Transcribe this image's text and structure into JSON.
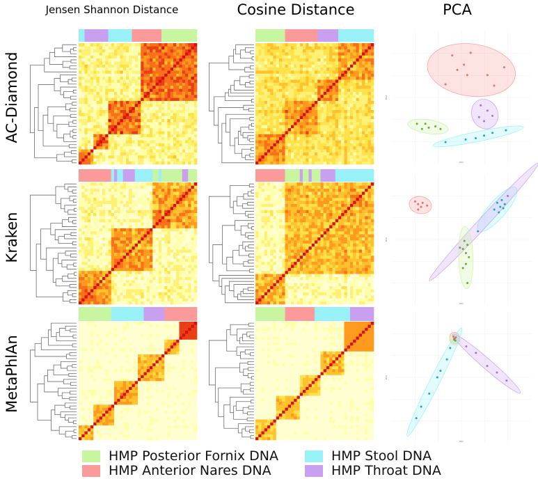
{
  "column_titles": [
    "Jensen Shannon Distance",
    "Cosine Distance",
    "PCA"
  ],
  "row_titles": [
    "AC-Diamond",
    "Kraken",
    "MetaPhlAn"
  ],
  "legend": [
    {
      "label": "HMP Posterior Fornix DNA",
      "color": "#c8f5a0"
    },
    {
      "label": "HMP Anterior Nares DNA",
      "color": "#fb9a9a"
    },
    {
      "label": "HMP Stool DNA",
      "color": "#98f1f7"
    },
    {
      "label": "HMP Throat DNA",
      "color": "#c9a0f0"
    }
  ],
  "chart_data": [
    {
      "type": "heatmap",
      "method": "AC-Diamond",
      "metric": "Jensen Shannon Distance",
      "samples": 40,
      "annotation": [
        {
          "group": "HMP Stool DNA",
          "count": 2
        },
        {
          "group": "HMP Throat DNA",
          "count": 8
        },
        {
          "group": "HMP Stool DNA",
          "count": 8
        },
        {
          "group": "HMP Anterior Nares DNA",
          "count": 10
        },
        {
          "group": "HMP Posterior Fornix DNA",
          "count": 12
        }
      ]
    },
    {
      "type": "heatmap",
      "method": "AC-Diamond",
      "metric": "Cosine Distance",
      "samples": 40,
      "annotation": [
        {
          "group": "HMP Posterior Fornix DNA",
          "count": 10
        },
        {
          "group": "HMP Anterior Nares DNA",
          "count": 11
        },
        {
          "group": "HMP Throat DNA",
          "count": 7
        },
        {
          "group": "HMP Stool DNA",
          "count": 12
        }
      ]
    },
    {
      "type": "scatter",
      "method": "AC-Diamond",
      "panel": "PCA",
      "xlabel": "PC1",
      "ylabel": "PC2",
      "series": [
        {
          "name": "HMP Anterior Nares DNA",
          "points": [
            [
              -0.5,
              3.1
            ],
            [
              0.6,
              3.3
            ],
            [
              0.2,
              2.4
            ],
            [
              -0.2,
              2.0
            ],
            [
              0.4,
              1.6
            ],
            [
              1.6,
              1.6
            ],
            [
              -0.9,
              0.9
            ],
            [
              2.0,
              0.8
            ],
            [
              2.6,
              2.2
            ]
          ]
        },
        {
          "name": "HMP Throat DNA",
          "points": [
            [
              1.2,
              -0.7
            ],
            [
              1.6,
              -1.1
            ],
            [
              1.9,
              -1.5
            ],
            [
              1.1,
              -1.6
            ],
            [
              1.4,
              -1.9
            ]
          ]
        },
        {
          "name": "HMP Posterior Fornix DNA",
          "points": [
            [
              -2.6,
              -2.1
            ],
            [
              -2.1,
              -2.1
            ],
            [
              -1.9,
              -2.4
            ],
            [
              -1.5,
              -2.3
            ],
            [
              -1.2,
              -2.5
            ],
            [
              -2.3,
              -2.5
            ]
          ]
        },
        {
          "name": "HMP Stool DNA",
          "points": [
            [
              -0.9,
              -3.5
            ],
            [
              0.3,
              -3.3
            ],
            [
              0.9,
              -3.2
            ],
            [
              1.4,
              -3.0
            ],
            [
              1.9,
              -2.8
            ],
            [
              2.7,
              -2.6
            ]
          ]
        }
      ]
    },
    {
      "type": "heatmap",
      "method": "Kraken",
      "metric": "Jensen Shannon Distance",
      "samples": 40,
      "annotation": [
        {
          "group": "HMP Anterior Nares DNA",
          "count": 11
        },
        {
          "group": "HMP Stool DNA",
          "count": 1
        },
        {
          "group": "HMP Throat DNA",
          "count": 1
        },
        {
          "group": "HMP Stool DNA",
          "count": 2
        },
        {
          "group": "HMP Throat DNA",
          "count": 4
        },
        {
          "group": "HMP Stool DNA",
          "count": 6
        },
        {
          "group": "HMP Posterior Fornix DNA",
          "count": 2
        },
        {
          "group": "HMP Stool DNA",
          "count": 1
        },
        {
          "group": "HMP Posterior Fornix DNA",
          "count": 7
        },
        {
          "group": "HMP Throat DNA",
          "count": 2
        },
        {
          "group": "HMP Posterior Fornix DNA",
          "count": 3
        }
      ]
    },
    {
      "type": "heatmap",
      "method": "Kraken",
      "metric": "Cosine Distance",
      "samples": 40,
      "annotation": [
        {
          "group": "HMP Anterior Nares DNA",
          "count": 10
        },
        {
          "group": "HMP Posterior Fornix DNA",
          "count": 5
        },
        {
          "group": "HMP Throat DNA",
          "count": 1
        },
        {
          "group": "HMP Posterior Fornix DNA",
          "count": 2
        },
        {
          "group": "HMP Throat DNA",
          "count": 1
        },
        {
          "group": "HMP Posterior Fornix DNA",
          "count": 3
        },
        {
          "group": "HMP Throat DNA",
          "count": 5
        },
        {
          "group": "HMP Stool DNA",
          "count": 13
        }
      ]
    },
    {
      "type": "scatter",
      "method": "Kraken",
      "panel": "PCA",
      "xlabel": "PC1",
      "ylabel": "PC2",
      "series": [
        {
          "name": "HMP Anterior Nares DNA",
          "points": [
            [
              -3.2,
              2.5
            ],
            [
              -3.0,
              2.3
            ],
            [
              -2.8,
              2.1
            ],
            [
              -3.0,
              1.9
            ],
            [
              -2.7,
              2.4
            ],
            [
              -2.4,
              2.2
            ]
          ]
        },
        {
          "name": "HMP Stool DNA",
          "points": [
            [
              2.3,
              2.4
            ],
            [
              2.6,
              2.6
            ],
            [
              2.5,
              2.1
            ],
            [
              2.8,
              2.3
            ],
            [
              2.1,
              1.9
            ],
            [
              2.7,
              2.0
            ],
            [
              2.4,
              1.7
            ],
            [
              1.0,
              0.3
            ]
          ]
        },
        {
          "name": "HMP Throat DNA",
          "points": [
            [
              3.0,
              2.9
            ],
            [
              -0.2,
              -0.9
            ]
          ]
        },
        {
          "name": "HMP Posterior Fornix DNA",
          "points": [
            [
              0.1,
              -0.4
            ],
            [
              0.3,
              -0.7
            ],
            [
              0.0,
              -1.0
            ],
            [
              0.2,
              -1.3
            ],
            [
              0.4,
              -1.6
            ],
            [
              0.2,
              -2.1
            ],
            [
              0.0,
              -2.4
            ],
            [
              0.3,
              -3.5
            ]
          ]
        }
      ]
    },
    {
      "type": "heatmap",
      "method": "MetaPhlAn",
      "metric": "Jensen Shannon Distance",
      "samples": 40,
      "annotation": [
        {
          "group": "HMP Posterior Fornix DNA",
          "count": 11
        },
        {
          "group": "HMP Stool DNA",
          "count": 11
        },
        {
          "group": "HMP Throat DNA",
          "count": 7
        },
        {
          "group": "HMP Anterior Nares DNA",
          "count": 11
        }
      ]
    },
    {
      "type": "heatmap",
      "method": "MetaPhlAn",
      "metric": "Cosine Distance",
      "samples": 40,
      "annotation": [
        {
          "group": "HMP Posterior Fornix DNA",
          "count": 10
        },
        {
          "group": "HMP Anterior Nares DNA",
          "count": 10
        },
        {
          "group": "HMP Stool DNA",
          "count": 12
        },
        {
          "group": "HMP Throat DNA",
          "count": 8
        }
      ]
    },
    {
      "type": "scatter",
      "method": "MetaPhlAn",
      "panel": "PCA",
      "xlabel": "PC1",
      "ylabel": "PC2",
      "series": [
        {
          "name": "HMP Anterior Nares DNA",
          "points": [
            [
              0.0,
              3.0
            ],
            [
              0.1,
              2.9
            ],
            [
              0.05,
              2.8
            ],
            [
              0.15,
              2.95
            ]
          ]
        },
        {
          "name": "HMP Posterior Fornix DNA",
          "points": [
            [
              0.05,
              2.85
            ],
            [
              0.12,
              2.75
            ]
          ]
        },
        {
          "name": "HMP Throat DNA",
          "points": [
            [
              0.8,
              2.4
            ],
            [
              1.4,
              2.0
            ],
            [
              2.1,
              1.2
            ],
            [
              2.7,
              0.8
            ],
            [
              3.3,
              0.3
            ]
          ]
        },
        {
          "name": "HMP Stool DNA",
          "points": [
            [
              -0.2,
              2.3
            ],
            [
              -0.4,
              1.6
            ],
            [
              -0.8,
              0.9
            ],
            [
              -1.0,
              0.5
            ],
            [
              -1.5,
              -0.5
            ],
            [
              -2.0,
              -1.3
            ],
            [
              -2.3,
              -2.0
            ]
          ]
        }
      ]
    }
  ]
}
